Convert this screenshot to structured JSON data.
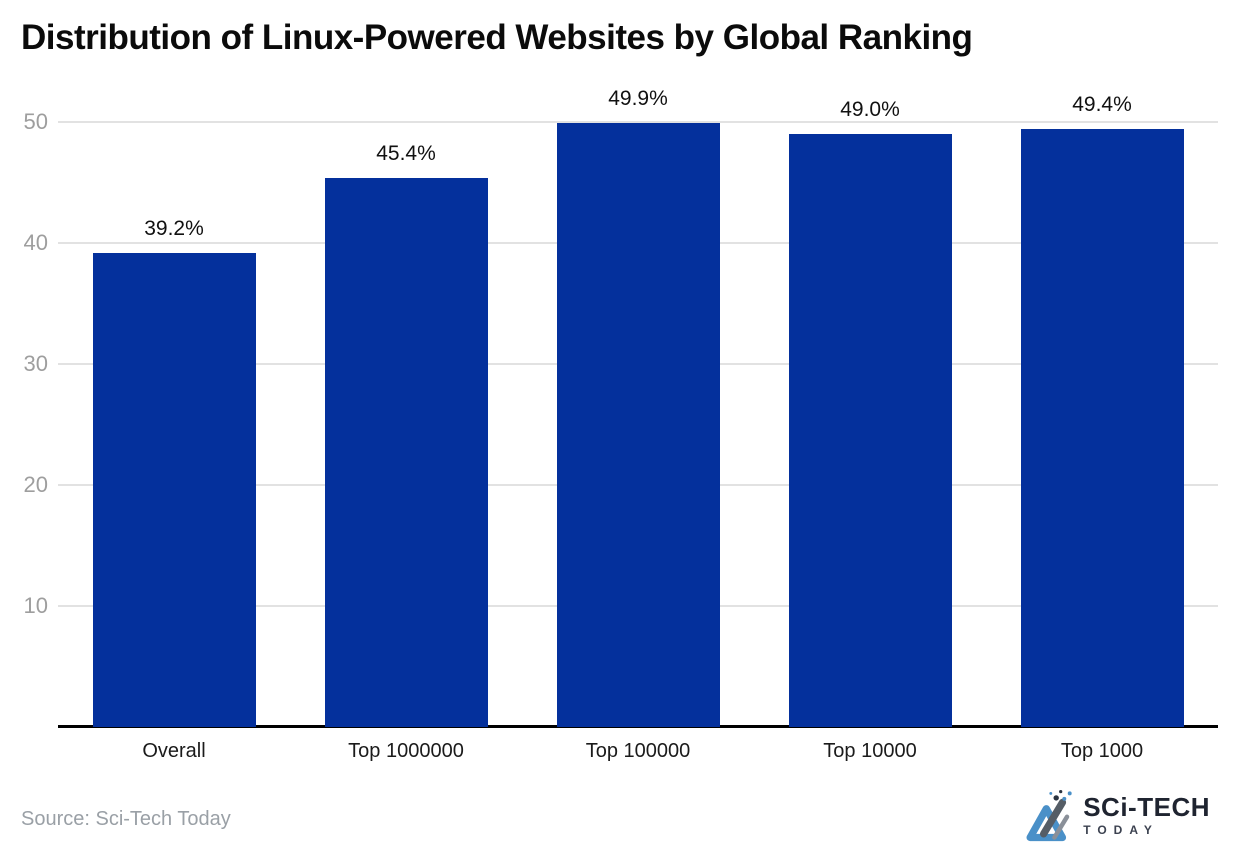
{
  "title": "Distribution of Linux-Powered Websites by Global Ranking",
  "source_note": "Source: Sci-Tech Today",
  "logo": {
    "line1": "SCi-TECH",
    "line2": "TODAY"
  },
  "colors": {
    "bar": "#04309C",
    "gridline": "#e2e2e2",
    "axis_line": "#000000",
    "y_tick_label": "#9e9e9e",
    "x_tick_label": "#1b1b1b",
    "value_label": "#111111",
    "source_text": "#9aa0a6",
    "logo_blue": "#4a90c8",
    "logo_dark": "#1f2430"
  },
  "chart_data": {
    "type": "bar",
    "title": "Distribution of Linux-Powered Websites by Global Ranking",
    "categories": [
      "Overall",
      "Top 1000000",
      "Top 100000",
      "Top 10000",
      "Top 1000"
    ],
    "values": [
      39.2,
      45.4,
      49.9,
      49.0,
      49.4
    ],
    "value_labels": [
      "39.2%",
      "45.4%",
      "49.9%",
      "49.0%",
      "49.4%"
    ],
    "xlabel": "",
    "ylabel": "",
    "ylim": [
      0,
      50
    ],
    "yticks": [
      10,
      20,
      30,
      40,
      50
    ],
    "ytick_labels": [
      "10",
      "20",
      "30",
      "40",
      "50"
    ],
    "grid": true,
    "legend": false
  }
}
